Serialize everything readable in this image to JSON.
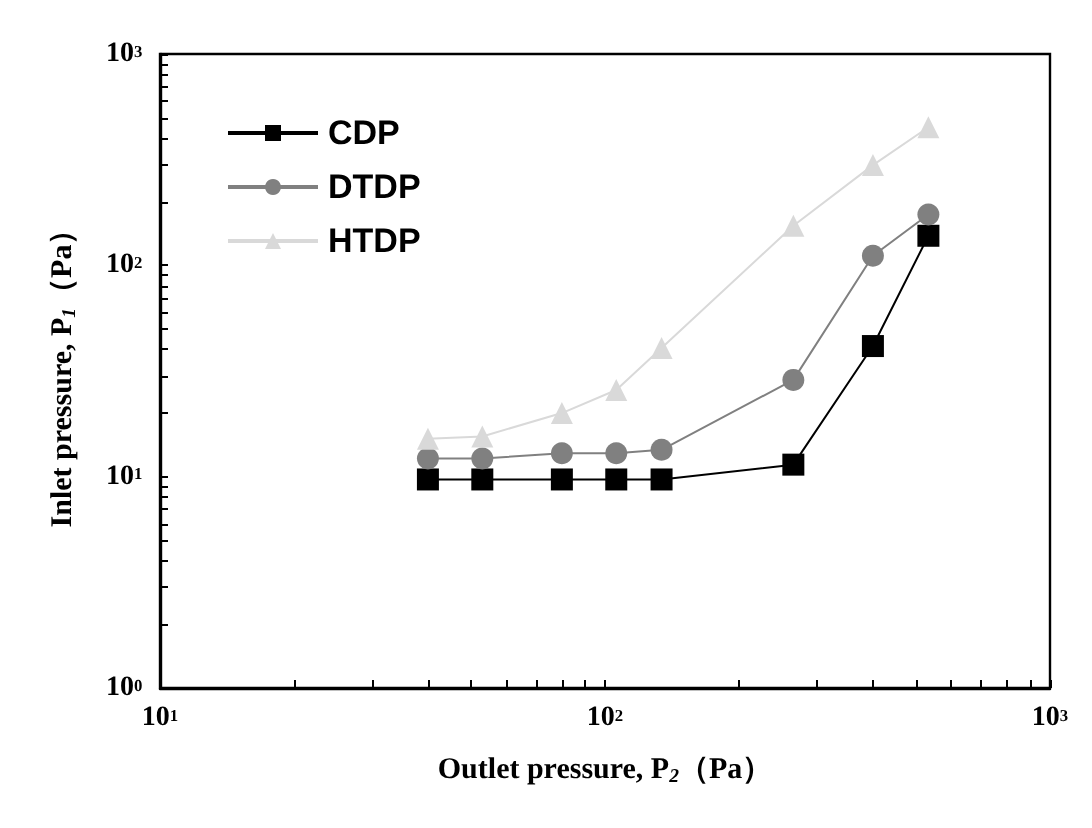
{
  "chart_data": {
    "type": "line",
    "xlabel": "Outlet pressure, P$_{2}$（Pa）",
    "ylabel": "Inlet pressure, P$_{1}$（Pa）",
    "log": "xy",
    "grid": false,
    "legend": "top left",
    "xlim": [
      10,
      1000
    ],
    "ylim": [
      1,
      1000
    ],
    "xticks": [
      {
        "value": 10,
        "label": "10$^{1}$"
      },
      {
        "value": 20,
        "label": null
      },
      {
        "value": 30,
        "label": null
      },
      {
        "value": 40,
        "label": null
      },
      {
        "value": 50,
        "label": null
      },
      {
        "value": 60,
        "label": null
      },
      {
        "value": 70,
        "label": null
      },
      {
        "value": 80,
        "label": null
      },
      {
        "value": 90,
        "label": null
      },
      {
        "value": 100,
        "label": "10$^{2}$"
      },
      {
        "value": 200,
        "label": null
      },
      {
        "value": 300,
        "label": null
      },
      {
        "value": 400,
        "label": null
      },
      {
        "value": 500,
        "label": null
      },
      {
        "value": 600,
        "label": null
      },
      {
        "value": 700,
        "label": null
      },
      {
        "value": 800,
        "label": null
      },
      {
        "value": 900,
        "label": null
      },
      {
        "value": 1000,
        "label": "10$^{3}$"
      }
    ],
    "yticks": [
      {
        "value": 1,
        "label": "10$^{0}$"
      },
      {
        "value": 2,
        "label": null
      },
      {
        "value": 3,
        "label": null
      },
      {
        "value": 4,
        "label": null
      },
      {
        "value": 5,
        "label": null
      },
      {
        "value": 6,
        "label": null
      },
      {
        "value": 7,
        "label": null
      },
      {
        "value": 8,
        "label": null
      },
      {
        "value": 9,
        "label": null
      },
      {
        "value": 10,
        "label": "10$^{1}$"
      },
      {
        "value": 20,
        "label": null
      },
      {
        "value": 30,
        "label": null
      },
      {
        "value": 40,
        "label": null
      },
      {
        "value": 50,
        "label": null
      },
      {
        "value": 60,
        "label": null
      },
      {
        "value": 70,
        "label": null
      },
      {
        "value": 80,
        "label": null
      },
      {
        "value": 90,
        "label": null
      },
      {
        "value": 100,
        "label": "10$^{2}$"
      },
      {
        "value": 200,
        "label": null
      },
      {
        "value": 300,
        "label": null
      },
      {
        "value": 400,
        "label": null
      },
      {
        "value": 500,
        "label": null
      },
      {
        "value": 600,
        "label": null
      },
      {
        "value": 700,
        "label": null
      },
      {
        "value": 800,
        "label": null
      },
      {
        "value": 900,
        "label": null
      },
      {
        "value": 1000,
        "label": "10$^{3}$"
      }
    ],
    "x": [
      40,
      53,
      80,
      106,
      134,
      265,
      400,
      533
    ],
    "series": [
      {
        "name": "CDP",
        "color": "#000000",
        "marker": "square",
        "values": [
          9.7,
          9.7,
          9.7,
          9.7,
          9.7,
          11.4,
          41.5,
          138
        ]
      },
      {
        "name": "DTDP",
        "color": "#808080",
        "marker": "circle",
        "values": [
          12.2,
          12.2,
          12.9,
          12.9,
          13.4,
          28.7,
          111,
          174
        ]
      },
      {
        "name": "HTDP",
        "color": "#d9d9d9",
        "marker": "triangle",
        "values": [
          15.1,
          15.5,
          20,
          25.7,
          40.6,
          154,
          298,
          450
        ]
      }
    ]
  }
}
